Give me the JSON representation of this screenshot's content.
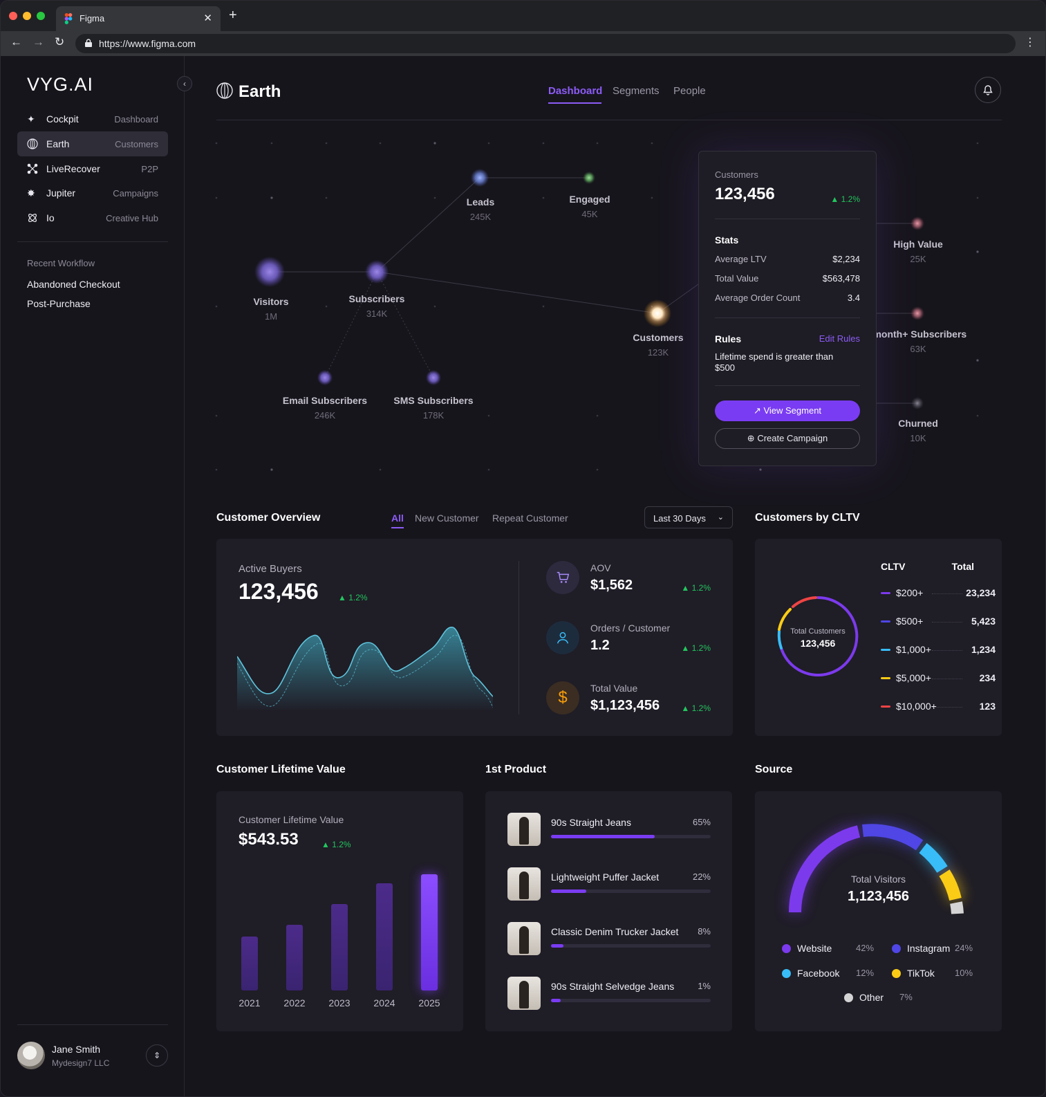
{
  "browser": {
    "tab_title": "Figma",
    "url": "https://www.figma.com"
  },
  "sidebar": {
    "logo": "VYG.AI",
    "items": [
      {
        "label": "Cockpit",
        "sub": "Dashboard",
        "icon": "sparkle-icon"
      },
      {
        "label": "Earth",
        "sub": "Customers",
        "icon": "globe-icon",
        "active": true
      },
      {
        "label": "LiveRecover",
        "sub": "P2P",
        "icon": "nodes-icon"
      },
      {
        "label": "Jupiter",
        "sub": "Campaigns",
        "icon": "burst-icon"
      },
      {
        "label": "Io",
        "sub": "Creative Hub",
        "icon": "atom-icon"
      }
    ],
    "recent_heading": "Recent Workflow",
    "recent": [
      "Abandoned Checkout",
      "Post-Purchase"
    ],
    "user": {
      "name": "Jane Smith",
      "org": "Mydesign7 LLC"
    }
  },
  "header": {
    "title": "Earth",
    "tabs": [
      "Dashboard",
      "Segments",
      "People"
    ],
    "active_tab": "Dashboard"
  },
  "graph": {
    "nodes": [
      {
        "label": "Visitors",
        "value": "1M"
      },
      {
        "label": "Subscribers",
        "value": "314K"
      },
      {
        "label": "Leads",
        "value": "245K"
      },
      {
        "label": "Engaged",
        "value": "45K"
      },
      {
        "label": "Email Subscribers",
        "value": "246K"
      },
      {
        "label": "SMS Subscribers",
        "value": "178K"
      },
      {
        "label": "Customers",
        "value": "123K"
      },
      {
        "label": "High Value",
        "value": "25K"
      },
      {
        "label": "-month+ Subscribers",
        "value": "63K"
      },
      {
        "label": "Churned",
        "value": "10K"
      }
    ]
  },
  "segment_card": {
    "title": "Customers",
    "value": "123,456",
    "change": "1.2%",
    "stats_heading": "Stats",
    "stats": [
      {
        "label": "Average LTV",
        "value": "$2,234"
      },
      {
        "label": "Total Value",
        "value": "$563,478"
      },
      {
        "label": "Average Order Count",
        "value": "3.4"
      }
    ],
    "rules_heading": "Rules",
    "edit_rules": "Edit Rules",
    "rule_text": "Lifetime spend is greater than $500",
    "view_button": "View Segment",
    "create_button": "Create Campaign"
  },
  "overview": {
    "title": "Customer Overview",
    "tabs": [
      "All",
      "New Customer",
      "Repeat Customer"
    ],
    "range": "Last 30 Days",
    "active_buyers_label": "Active Buyers",
    "active_buyers_value": "123,456",
    "active_buyers_change": "1.2%",
    "kpis": [
      {
        "label": "AOV",
        "value": "$1,562",
        "change": "1.2%",
        "icon": "cart-icon"
      },
      {
        "label": "Orders / Customer",
        "value": "1.2",
        "change": "1.2%",
        "icon": "person-icon"
      },
      {
        "label": "Total Value",
        "value": "$1,123,456",
        "change": "1.2%",
        "icon": "dollar-icon"
      }
    ]
  },
  "cltv": {
    "title": "Customers by CLTV",
    "col_left": "CLTV",
    "col_right": "Total",
    "center_label": "Total Customers",
    "center_value": "123,456",
    "rows": [
      {
        "label": "$200+",
        "value": "23,234",
        "color": "#7c3aed"
      },
      {
        "label": "$500+",
        "value": "5,423",
        "color": "#4f46e5"
      },
      {
        "label": "$1,000+",
        "value": "1,234",
        "color": "#38bdf8"
      },
      {
        "label": "$5,000+",
        "value": "234",
        "color": "#facc15"
      },
      {
        "label": "$10,000+",
        "value": "123",
        "color": "#ef4444"
      }
    ]
  },
  "lifetime": {
    "title": "Customer Lifetime Value",
    "label": "Customer Lifetime Value",
    "value": "$543.53",
    "change": "1.2%"
  },
  "chart_data": {
    "type": "bar",
    "categories": [
      "2021",
      "2022",
      "2023",
      "2024",
      "2025"
    ],
    "values": [
      78,
      95,
      125,
      155,
      168
    ]
  },
  "product": {
    "title": "1st Product",
    "items": [
      {
        "name": "90s Straight Jeans",
        "pct": "65%",
        "value": 65
      },
      {
        "name": "Lightweight Puffer Jacket",
        "pct": "22%",
        "value": 22
      },
      {
        "name": "Classic Denim Trucker Jacket",
        "pct": "8%",
        "value": 8
      },
      {
        "name": "90s Straight Selvedge Jeans",
        "pct": "1%",
        "value": 1
      }
    ]
  },
  "source": {
    "title": "Source",
    "center_label": "Total Visitors",
    "center_value": "1,123,456",
    "items": [
      {
        "name": "Website",
        "pct": "42%",
        "color": "#7c3aed"
      },
      {
        "name": "Instagram",
        "pct": "24%",
        "color": "#4f46e5"
      },
      {
        "name": "Facebook",
        "pct": "12%",
        "color": "#38bdf8"
      },
      {
        "name": "TikTok",
        "pct": "10%",
        "color": "#facc15"
      },
      {
        "name": "Other",
        "pct": "7%",
        "color": "#d4d4d4"
      }
    ]
  }
}
